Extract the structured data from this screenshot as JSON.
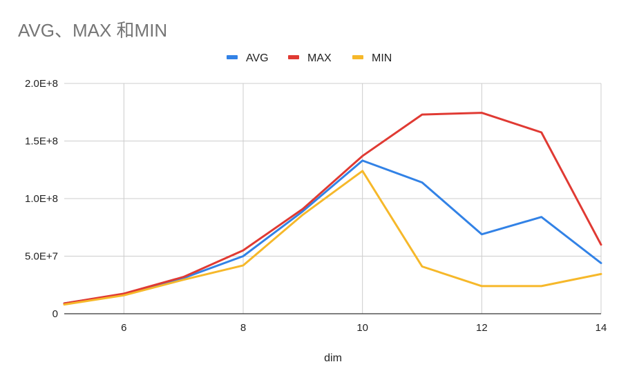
{
  "chart_data": {
    "type": "line",
    "title": "AVG、MAX 和MIN",
    "xlabel": "dim",
    "ylabel": "",
    "x": [
      5,
      6,
      7,
      8,
      9,
      10,
      11,
      12,
      13,
      14
    ],
    "xlim": [
      5,
      14
    ],
    "ylim": [
      0,
      200000000
    ],
    "x_ticks": [
      6,
      8,
      10,
      12,
      14
    ],
    "x_tick_labels": [
      "6",
      "8",
      "10",
      "12",
      "14"
    ],
    "y_ticks": [
      0,
      50000000,
      100000000,
      150000000,
      200000000
    ],
    "y_tick_labels": [
      "0",
      "5.0E+7",
      "1.0E+8",
      "1.5E+8",
      "2.0E+8"
    ],
    "grid": true,
    "legend_position": "top-center",
    "series": [
      {
        "name": "AVG",
        "color": "#3282e6",
        "values": [
          9000000,
          17000000,
          31000000,
          50000000,
          89000000,
          133000000,
          114000000,
          69000000,
          84000000,
          44000000
        ]
      },
      {
        "name": "MAX",
        "color": "#e03a33",
        "values": [
          9000000,
          17500000,
          32000000,
          55000000,
          91000000,
          137000000,
          173000000,
          174500000,
          157500000,
          60000000
        ]
      },
      {
        "name": "MIN",
        "color": "#f6b82a",
        "values": [
          8000000,
          16000000,
          29500000,
          42000000,
          86000000,
          124000000,
          41000000,
          24000000,
          24000000,
          34500000
        ]
      }
    ]
  }
}
